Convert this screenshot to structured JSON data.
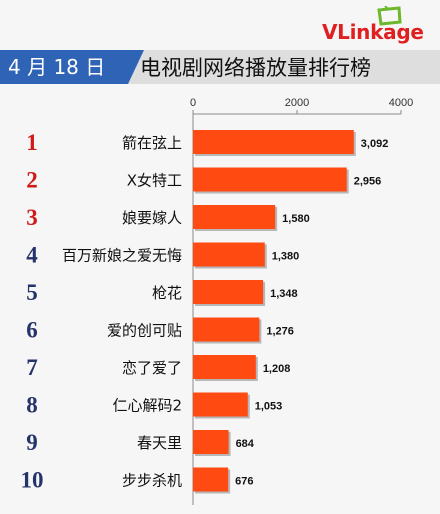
{
  "header": {
    "date": "4 月 18 日",
    "title": "电视剧网络播放量排行榜"
  },
  "brand": {
    "logo_prefix": "VL",
    "logo_rest": "inkage"
  },
  "colors": {
    "bar": "#ff4a12",
    "rank_top3": "#d01a1a",
    "rank_rest": "#25336b",
    "badge": "#2f63b6"
  },
  "chart_data": {
    "type": "bar",
    "orientation": "horizontal",
    "title": "电视剧网络播放量排行榜",
    "xlim": [
      0,
      4000
    ],
    "x_ticks": [
      "0",
      "2000",
      "4000"
    ],
    "grid": false,
    "ranks": [
      "1",
      "2",
      "3",
      "4",
      "5",
      "6",
      "7",
      "8",
      "9",
      "10"
    ],
    "categories": [
      "箭在弦上",
      "X女特工",
      "娘要嫁人",
      "百万新娘之爱无悔",
      "枪花",
      "爱的创可贴",
      "恋了爱了",
      "仁心解码2",
      "春天里",
      "步步杀机"
    ],
    "values": [
      3092,
      2956,
      1580,
      1380,
      1348,
      1276,
      1208,
      1053,
      684,
      676
    ],
    "value_labels": [
      "3,092",
      "2,956",
      "1,580",
      "1,380",
      "1,348",
      "1,276",
      "1,208",
      "1,053",
      "684",
      "676"
    ]
  }
}
